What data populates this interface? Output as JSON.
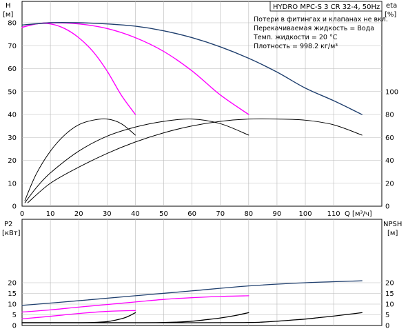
{
  "title": "HYDRO MPC-S 3 CR 32-4, 50Hz",
  "info_lines": [
    "Потери в фитингах и клапанах не вкл.",
    "Перекачиваемая жидкость = Вода",
    "Темп. жидкости = 20 °C",
    "Плотность = 998.2 кг/м³"
  ],
  "colors": {
    "one_pump": "#ff00ff",
    "two_pumps": "#ff00ff",
    "three_pumps": "#1f3f6e",
    "eta": "#000000",
    "npsh": "#000000"
  },
  "chart_data": [
    {
      "type": "line",
      "name": "head-and-efficiency",
      "xlabel": "Q [м³/ч]",
      "ylabel": "H [м]",
      "y2label": "eta [%]",
      "xlim": [
        0,
        127
      ],
      "ylim": [
        0,
        80
      ],
      "y2lim": [
        0,
        160
      ],
      "x_ticks": [
        "0",
        "10",
        "20",
        "30",
        "40",
        "50",
        "60",
        "70",
        "80",
        "90",
        "100",
        "110"
      ],
      "y_ticks": [
        "0",
        "10",
        "20",
        "30",
        "40",
        "50",
        "60",
        "70",
        "80"
      ],
      "y2_ticks": [
        "0",
        "20",
        "40",
        "60",
        "80",
        "100"
      ],
      "series": [
        {
          "axis": "y",
          "color_key": "one_pump",
          "x": [
            0,
            5,
            10,
            15,
            20,
            25,
            30,
            35,
            40
          ],
          "y": [
            78,
            79.5,
            79.5,
            77.5,
            73.5,
            67.5,
            59,
            48.5,
            40
          ]
        },
        {
          "axis": "y",
          "color_key": "two_pumps",
          "x": [
            0,
            5,
            10,
            20,
            30,
            40,
            50,
            60,
            70,
            80
          ],
          "y": [
            78,
            79.5,
            80,
            79.5,
            77.5,
            73.5,
            67.5,
            59,
            48.5,
            40
          ]
        },
        {
          "axis": "y",
          "color_key": "three_pumps",
          "x": [
            0,
            10,
            20,
            30,
            40,
            50,
            60,
            70,
            80,
            90,
            100,
            110,
            120
          ],
          "y": [
            79,
            80,
            80,
            79.5,
            78.5,
            76.5,
            73.5,
            69.5,
            64.5,
            58.5,
            51.5,
            46,
            40
          ]
        },
        {
          "axis": "y2",
          "color_key": "eta",
          "x": [
            1,
            5,
            10,
            15,
            20,
            25,
            30,
            35,
            40
          ],
          "y": [
            5,
            28,
            48,
            62,
            71,
            75,
            76,
            72,
            62
          ]
        },
        {
          "axis": "y2",
          "color_key": "eta",
          "x": [
            1,
            5,
            10,
            20,
            30,
            40,
            50,
            60,
            70,
            80
          ],
          "y": [
            3,
            16,
            29,
            48,
            61,
            69,
            74,
            76,
            72,
            62
          ]
        },
        {
          "axis": "y2",
          "color_key": "eta",
          "x": [
            2,
            10,
            20,
            30,
            40,
            50,
            60,
            70,
            80,
            90,
            100,
            110,
            120
          ],
          "y": [
            3,
            20,
            34,
            46,
            56,
            64,
            70,
            74,
            76,
            76,
            75,
            71,
            62
          ]
        }
      ]
    },
    {
      "type": "line",
      "name": "power-and-npsh",
      "ylabel": "P2 [кВт]",
      "y2label": "NPSH [м]",
      "xlim": [
        0,
        127
      ],
      "ylim": [
        0,
        21
      ],
      "y2lim": [
        0,
        21
      ],
      "y_ticks": [
        "0",
        "5",
        "10",
        "15",
        "20"
      ],
      "y2_ticks": [
        "0",
        "5",
        "10",
        "15",
        "20"
      ],
      "series": [
        {
          "axis": "y",
          "color_key": "one_pump",
          "x": [
            0,
            10,
            20,
            30,
            40
          ],
          "y": [
            3.1,
            4.3,
            5.6,
            6.6,
            7.0
          ]
        },
        {
          "axis": "y",
          "color_key": "two_pumps",
          "x": [
            0,
            10,
            20,
            30,
            40,
            50,
            60,
            70,
            80
          ],
          "y": [
            6.3,
            7.3,
            8.6,
            9.8,
            11.0,
            12.2,
            13.0,
            13.6,
            13.9
          ]
        },
        {
          "axis": "y",
          "color_key": "three_pumps",
          "x": [
            0,
            20,
            40,
            60,
            80,
            100,
            120
          ],
          "y": [
            9.4,
            11.6,
            13.9,
            16.2,
            18.5,
            20.0,
            20.9
          ]
        },
        {
          "axis": "y2",
          "color_key": "npsh",
          "x": [
            0,
            20,
            25,
            30,
            33,
            36,
            38,
            40
          ],
          "y": [
            1.3,
            1.3,
            1.4,
            1.8,
            2.5,
            3.5,
            4.6,
            6.0
          ]
        },
        {
          "axis": "y2",
          "color_key": "npsh",
          "x": [
            0,
            40,
            50,
            55,
            60,
            65,
            70,
            75,
            80
          ],
          "y": [
            1.3,
            1.3,
            1.4,
            1.6,
            2.0,
            2.7,
            3.5,
            4.6,
            6.0
          ]
        },
        {
          "axis": "y2",
          "color_key": "npsh",
          "x": [
            0,
            60,
            80,
            85,
            90,
            95,
            100,
            105,
            110,
            115,
            120
          ],
          "y": [
            1.3,
            1.3,
            1.4,
            1.6,
            2.0,
            2.5,
            3.0,
            3.7,
            4.4,
            5.2,
            6.0
          ]
        }
      ]
    }
  ]
}
